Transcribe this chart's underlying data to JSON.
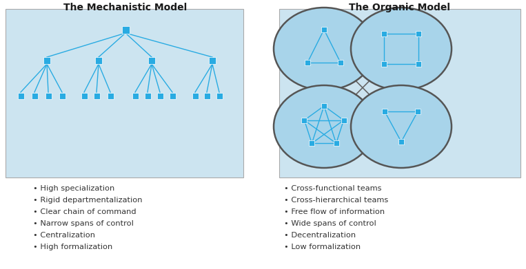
{
  "title_mech": "The Mechanistic Model",
  "title_org": "The Organic Model",
  "bg_color": "#ffffff",
  "panel_color": "#cce4f0",
  "node_color": "#29abe2",
  "line_color": "#29abe2",
  "circle_fill": "#a8d4ea",
  "circle_edge": "#555555",
  "cross_line_color": "#666666",
  "bullet_color": "#333333",
  "title_color": "#1a1a1a",
  "mech_bullets": [
    "High specialization",
    "Rigid departmentalization",
    "Clear chain of command",
    "Narrow spans of control",
    "Centralization",
    "High formalization"
  ],
  "org_bullets": [
    "Cross-functional teams",
    "Cross-hierarchical teams",
    "Free flow of information",
    "Wide spans of control",
    "Decentralization",
    "Low formalization"
  ]
}
